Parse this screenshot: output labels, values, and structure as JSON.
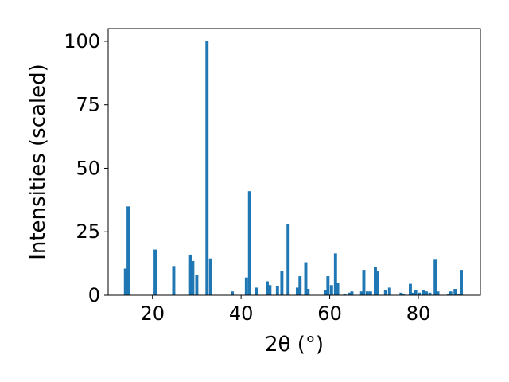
{
  "chart_data": {
    "type": "bar",
    "xlabel": "2θ (°)",
    "ylabel": "Intensities (scaled)",
    "xlim": [
      10,
      94
    ],
    "ylim": [
      0,
      105
    ],
    "xticks": [
      20,
      40,
      60,
      80
    ],
    "yticks": [
      0,
      25,
      50,
      75,
      100
    ],
    "grid": false,
    "bar_width": 0.7,
    "bar_color": "#1f77b4",
    "x": [
      13.9,
      14.5,
      20.6,
      24.8,
      28.6,
      29.1,
      30.0,
      32.3,
      33.1,
      38.0,
      41.2,
      41.9,
      43.5,
      45.9,
      46.5,
      48.2,
      49.2,
      50.6,
      52.7,
      53.3,
      54.6,
      55.1,
      59.1,
      59.6,
      60.4,
      61.3,
      61.8,
      63.4,
      64.5,
      65.0,
      67.2,
      67.7,
      68.5,
      69.2,
      70.3,
      70.8,
      72.6,
      73.5,
      76.1,
      76.6,
      78.2,
      78.8,
      79.4,
      80.2,
      81.1,
      81.8,
      82.6,
      83.8,
      84.4,
      86.8,
      87.3,
      88.3,
      89.2,
      89.7
    ],
    "values": [
      10.5,
      35,
      18,
      11.5,
      16,
      13.5,
      8,
      100,
      14.5,
      1.5,
      7,
      41,
      3,
      5.5,
      4,
      3.5,
      9.5,
      28,
      3,
      7.5,
      13,
      2.5,
      2,
      7.5,
      4,
      16.5,
      5,
      0.5,
      1,
      1.5,
      1.5,
      10,
      1.5,
      1.5,
      11,
      9.5,
      2,
      3,
      1,
      0.5,
      4.5,
      1,
      2,
      1,
      2,
      1.5,
      1,
      14,
      1.5,
      0.5,
      1.5,
      2.5,
      0.5,
      10
    ]
  }
}
